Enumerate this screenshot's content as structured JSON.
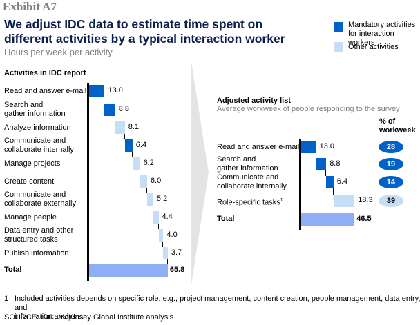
{
  "header": {
    "exhibit": "Exhibit A7",
    "title": "We adjust IDC data to estimate time spent on different activities by a typical interaction worker",
    "subtitle": "Hours per week per activity"
  },
  "legend": [
    {
      "label_line1": "Mandatory activities",
      "label_line2": "for interaction workers",
      "color": "#0061c9"
    },
    {
      "label_line1": "Other activities",
      "label_line2": "",
      "color": "#c6ddf7"
    }
  ],
  "colors": {
    "mandatory": "#0061c9",
    "other": "#c6ddf7",
    "total": "#90aef5",
    "pill_mandatory_text": "#ffffff",
    "pill_other_text": "#000000",
    "arrow": "#e3e3e3"
  },
  "chart_data": [
    {
      "type": "bar",
      "subtype": "waterfall",
      "title": "Activities in IDC report",
      "unit": "Hours per week",
      "categories": [
        [
          "Read and answer e-mail"
        ],
        [
          "Search and",
          "gather information"
        ],
        [
          "Analyze information"
        ],
        [
          "Communicate and",
          "collaborate internally"
        ],
        [
          "Manage projects"
        ],
        [
          "Create content"
        ],
        [
          "Communicate and",
          "collaborate externally"
        ],
        [
          "Manage people"
        ],
        [
          "Data entry and other",
          "structured tasks"
        ],
        [
          "Publish information"
        ]
      ],
      "values": [
        13.0,
        8.8,
        8.1,
        6.4,
        6.2,
        6.0,
        5.2,
        4.4,
        4.0,
        3.7
      ],
      "value_labels": [
        "13.0",
        "8.8",
        "8.1",
        "6.4",
        "6.2",
        "6.0",
        "5.2",
        "4.4",
        "4.0",
        "3.7"
      ],
      "kind": [
        "mandatory",
        "mandatory",
        "other",
        "mandatory",
        "other",
        "other",
        "other",
        "other",
        "other",
        "other"
      ],
      "total": {
        "label": "Total",
        "value": 65.8,
        "value_label": "65.8"
      }
    },
    {
      "type": "bar",
      "subtype": "waterfall",
      "title": "Adjusted activity list",
      "subtitle": "Average workweek of people responding to the survey",
      "unit": "Hours per week",
      "pct_header": [
        "% of",
        "workweek"
      ],
      "categories": [
        [
          "Read and answer e-mail"
        ],
        [
          "Search and",
          "gather information"
        ],
        [
          "Communicate and",
          "collaborate internally"
        ],
        [
          "Role-specific tasks",
          "1"
        ]
      ],
      "values": [
        13.0,
        8.8,
        6.4,
        18.3
      ],
      "value_labels": [
        "13.0",
        "8.8",
        "6.4",
        "18.3"
      ],
      "kind": [
        "mandatory",
        "mandatory",
        "mandatory",
        "other"
      ],
      "pct_of_workweek": [
        "28",
        "19",
        "14",
        "39"
      ],
      "total": {
        "label": "Total",
        "value": 46.5,
        "value_label": "46.5"
      }
    }
  ],
  "footnotes": {
    "note1_marker": "1",
    "note1_line1": "Included activities depends on specific role, e.g., project management, content creation, people management, data entry, and",
    "note1_line2": "information analysis.",
    "source": "SOURCE: IDC; McKinsey Global Institute analysis"
  }
}
